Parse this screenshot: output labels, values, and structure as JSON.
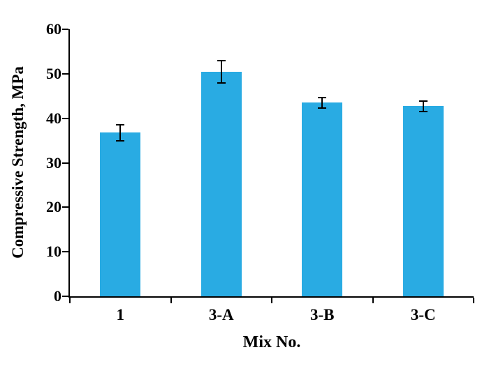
{
  "chart_data": {
    "type": "bar",
    "categories": [
      "1",
      "3-A",
      "3-B",
      "3-C"
    ],
    "values": [
      36.8,
      50.5,
      43.5,
      42.7
    ],
    "errors": [
      1.8,
      2.5,
      1.2,
      1.2
    ],
    "title": "",
    "xlabel": "Mix No.",
    "ylabel": "Compressive Strength, MPa",
    "ylim": [
      0,
      60
    ],
    "ytick_step": 10,
    "yticks": [
      0,
      10,
      20,
      30,
      40,
      50,
      60
    ],
    "bar_color": "#29ABE3",
    "axis_color": "#000000",
    "error_bar_color": "#000000",
    "grid": false,
    "legend": "none"
  }
}
